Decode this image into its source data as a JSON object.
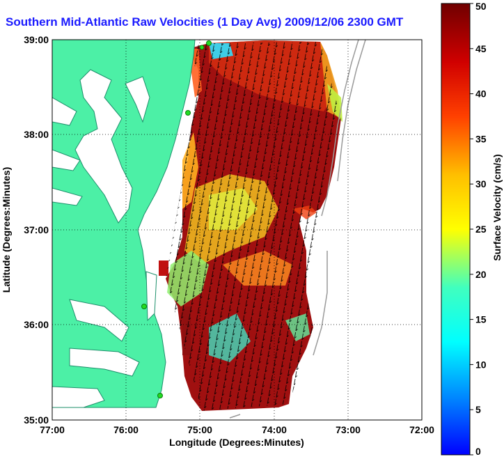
{
  "title": "Southern Mid-Atlantic Raw Velocities (1 Day Avg) 2009/12/06 2300 GMT",
  "map": {
    "xlabel": "Longitude (Degrees:Minutes)",
    "ylabel": "Latitude (Degrees:Minutes)",
    "xticks": [
      "77:00",
      "76:00",
      "75:00",
      "74:00",
      "73:00",
      "72:00"
    ],
    "yticks": [
      "39:00",
      "38:00",
      "37:00",
      "36:00",
      "35:00"
    ],
    "grid": "dotted",
    "colors": {
      "land": "#4cf0a6",
      "water": "#ffffff",
      "frame": "#000000",
      "bathymetry": "#999999",
      "stations": "#22dd22"
    }
  },
  "colorbar": {
    "label": "Surface Velocity (cm/s)",
    "ticks": [
      "50",
      "45",
      "40",
      "35",
      "30",
      "25",
      "20",
      "15",
      "10",
      "5",
      "0"
    ],
    "min": 0,
    "max": 50,
    "colormap": "jet"
  }
}
